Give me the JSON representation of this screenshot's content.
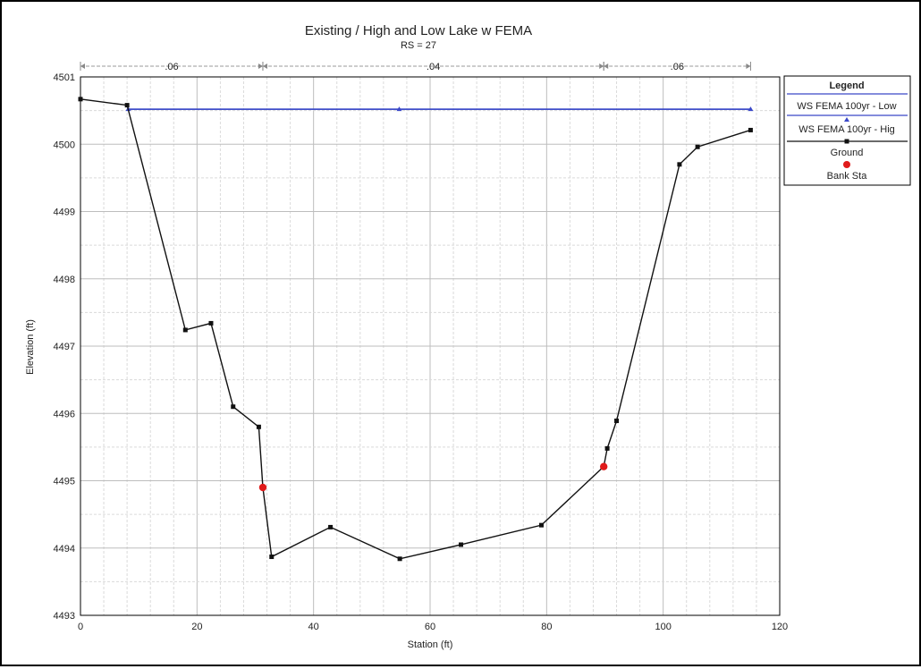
{
  "chart_data": {
    "type": "line",
    "title": "Existing / High and Low Lake w FEMA",
    "subtitle": "RS = 27",
    "xlabel": "Station (ft)",
    "ylabel": "Elevation (ft)",
    "xlim": [
      0,
      120
    ],
    "ylim": [
      4493,
      4501
    ],
    "xticks": [
      "0",
      "20",
      "40",
      "60",
      "80",
      "100",
      "120"
    ],
    "yticks": [
      "4493",
      "4494",
      "4495",
      "4496",
      "4497",
      "4498",
      "4499",
      "4500",
      "4501"
    ],
    "grid": true,
    "n_values": {
      "segments": [
        {
          "label": ".06",
          "x_start": 0,
          "x_end": 31.3
        },
        {
          "label": ".04",
          "x_start": 31.3,
          "x_end": 89.8
        },
        {
          "label": ".06",
          "x_start": 89.8,
          "x_end": 115
        }
      ]
    },
    "series": [
      {
        "name": "WS FEMA 100yr - Low",
        "color": "#3a48c8",
        "marker": "none",
        "x": [
          8.2,
          115
        ],
        "y": [
          4500.52,
          4500.52
        ]
      },
      {
        "name": "WS FEMA 100yr - Hig",
        "color": "#3a48c8",
        "marker": "triangle",
        "x": [
          8.2,
          54.7,
          115
        ],
        "y": [
          4500.52,
          4500.52,
          4500.52
        ]
      },
      {
        "name": "Ground",
        "color": "#111111",
        "marker": "square",
        "x": [
          0,
          8.0,
          18.0,
          22.4,
          26.2,
          30.6,
          31.3,
          32.8,
          42.9,
          54.8,
          65.3,
          79.1,
          89.8,
          90.4,
          92.0,
          102.8,
          105.9,
          115
        ],
        "y": [
          4500.67,
          4500.58,
          4497.24,
          4497.34,
          4496.1,
          4495.8,
          4494.9,
          4493.87,
          4494.31,
          4493.84,
          4494.05,
          4494.34,
          4495.21,
          4495.48,
          4495.89,
          4499.7,
          4499.96,
          4500.21
        ]
      },
      {
        "name": "Bank Sta",
        "color": "#e01b1b",
        "marker": "circle",
        "x": [
          31.3,
          89.8
        ],
        "y": [
          4494.9,
          4495.21
        ]
      }
    ],
    "legend": {
      "title": "Legend",
      "placement": "right"
    }
  }
}
